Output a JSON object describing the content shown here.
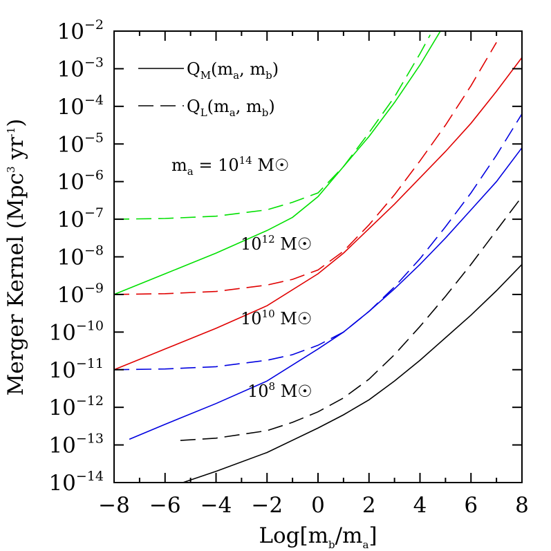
{
  "chart_data": {
    "type": "line",
    "xlabel": "Log[m_b/m_a]",
    "ylabel": "Merger Kernel (Mpc^3 yr^-1)",
    "xlim": [
      -8,
      8
    ],
    "ylim_log10": [
      -14,
      -2
    ],
    "y_scale": "log",
    "grid": false,
    "x_ticks": [
      -8,
      -6,
      -4,
      -2,
      0,
      2,
      4,
      6,
      8
    ],
    "y_ticks_log10": [
      -2,
      -3,
      -4,
      -5,
      -6,
      -7,
      -8,
      -9,
      -10,
      -11,
      -12,
      -13,
      -14
    ],
    "legend": {
      "placement": "top-left",
      "entries": [
        {
          "style": "solid",
          "label": "Q_M(m_a, m_b)"
        },
        {
          "style": "dashed",
          "label": "Q_L(m_a, m_b)"
        }
      ]
    },
    "annotations": [
      {
        "text": "m_a = 10^14 M_sun",
        "color": "#000000"
      },
      {
        "text": "10^12 M_sun",
        "color": "#000000"
      },
      {
        "text": "10^10 M_sun",
        "color": "#000000"
      },
      {
        "text": "10^8 M_sun",
        "color": "#000000"
      }
    ],
    "series": [
      {
        "mass": "10^14",
        "style": "solid",
        "color": "#00e000",
        "x": [
          -8,
          -6,
          -4,
          -2,
          -1,
          0,
          1,
          2,
          3,
          4,
          4.8
        ],
        "log10_y": [
          -9.0,
          -8.45,
          -7.9,
          -7.3,
          -6.95,
          -6.4,
          -5.6,
          -4.8,
          -3.9,
          -2.9,
          -2.0
        ]
      },
      {
        "mass": "10^14",
        "style": "dashed",
        "color": "#00e000",
        "x": [
          -8,
          -6,
          -4,
          -2,
          -1,
          0,
          1,
          2,
          3,
          4,
          4.4
        ],
        "log10_y": [
          -7.0,
          -6.98,
          -6.92,
          -6.75,
          -6.55,
          -6.3,
          -5.6,
          -4.7,
          -3.75,
          -2.6,
          -2.1
        ]
      },
      {
        "mass": "10^12",
        "style": "solid",
        "color": "#e00000",
        "x": [
          -8,
          -6,
          -4,
          -2,
          0,
          1,
          2,
          3,
          4,
          5,
          6,
          7,
          8
        ],
        "log10_y": [
          -11.0,
          -10.45,
          -9.9,
          -9.3,
          -8.45,
          -7.9,
          -7.25,
          -6.6,
          -5.9,
          -5.2,
          -4.45,
          -3.6,
          -2.7
        ]
      },
      {
        "mass": "10^12",
        "style": "dashed",
        "color": "#e00000",
        "x": [
          -8,
          -6,
          -4,
          -2,
          -1,
          0,
          1,
          2,
          3,
          4,
          5,
          6,
          7
        ],
        "log10_y": [
          -9.0,
          -8.98,
          -8.92,
          -8.75,
          -8.6,
          -8.35,
          -7.85,
          -7.15,
          -6.35,
          -5.45,
          -4.5,
          -3.45,
          -2.3
        ]
      },
      {
        "mass": "10^10",
        "style": "solid",
        "color": "#0000e0",
        "x": [
          -7.4,
          -6,
          -4,
          -2,
          0,
          1,
          2,
          3,
          4,
          5,
          6,
          7,
          8
        ],
        "log10_y": [
          -12.85,
          -12.45,
          -11.9,
          -11.3,
          -10.45,
          -10.0,
          -9.45,
          -8.85,
          -8.2,
          -7.5,
          -6.75,
          -6.0,
          -5.1
        ]
      },
      {
        "mass": "10^10",
        "style": "dashed",
        "color": "#0000e0",
        "x": [
          -8,
          -6,
          -4,
          -2,
          -1,
          0,
          1,
          2,
          3,
          4,
          5,
          6,
          7,
          8
        ],
        "log10_y": [
          -11.0,
          -10.98,
          -10.92,
          -10.75,
          -10.6,
          -10.35,
          -10.0,
          -9.45,
          -8.8,
          -8.05,
          -7.2,
          -6.3,
          -5.3,
          -4.2
        ]
      },
      {
        "mass": "10^8",
        "style": "solid",
        "color": "#000000",
        "x": [
          -5.3,
          -4,
          -2,
          0,
          1,
          2,
          3,
          4,
          5,
          6,
          7,
          8
        ],
        "log10_y": [
          -14.0,
          -13.7,
          -13.2,
          -12.55,
          -12.2,
          -11.8,
          -11.3,
          -10.75,
          -10.15,
          -9.55,
          -8.9,
          -8.2
        ]
      },
      {
        "mass": "10^8",
        "style": "dashed",
        "color": "#000000",
        "x": [
          -5.4,
          -4,
          -2,
          -1,
          0,
          1,
          2,
          3,
          4,
          5,
          6,
          7,
          8
        ],
        "log10_y": [
          -12.88,
          -12.82,
          -12.62,
          -12.4,
          -12.12,
          -11.75,
          -11.25,
          -10.6,
          -9.85,
          -9.05,
          -8.2,
          -7.3,
          -6.4
        ]
      }
    ]
  }
}
